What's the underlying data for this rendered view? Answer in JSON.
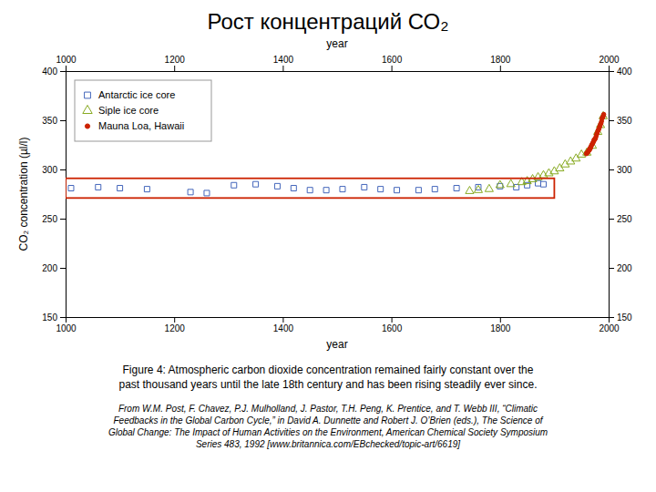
{
  "chart_data": {
    "type": "scatter",
    "title": "Рост концентраций СО₂",
    "x_label": "year",
    "y_label": "CO₂ concentration (µl/l)",
    "xlim": [
      1000,
      2000
    ],
    "ylim": [
      150,
      400
    ],
    "xticks": [
      1000,
      1200,
      1400,
      1600,
      1800,
      2000
    ],
    "yticks": [
      150,
      200,
      250,
      300,
      350,
      400
    ],
    "grid": false,
    "legend": "upper left",
    "series": [
      {
        "name": "Antarctic ice core",
        "color": "#4466bb",
        "marker": "square",
        "x": [
          1010,
          1060,
          1100,
          1150,
          1230,
          1260,
          1310,
          1350,
          1390,
          1420,
          1450,
          1480,
          1510,
          1550,
          1580,
          1610,
          1650,
          1680,
          1720,
          1760,
          1800,
          1830,
          1850,
          1870,
          1880
        ],
        "values": [
          281,
          282,
          281,
          280,
          277,
          276,
          284,
          285,
          283,
          281,
          279,
          279,
          280,
          282,
          280,
          279,
          279,
          280,
          281,
          282,
          283,
          282,
          284,
          286,
          285
        ]
      },
      {
        "name": "Siple ice core",
        "color": "#88aa22",
        "marker": "triangle",
        "x": [
          1744,
          1760,
          1780,
          1800,
          1820,
          1840,
          1850,
          1860,
          1870,
          1880,
          1890,
          1900,
          1910,
          1920,
          1930,
          1940,
          1950,
          1960,
          1970,
          1980,
          1985,
          1990
        ],
        "values": [
          278,
          279,
          280,
          284,
          285,
          287,
          288,
          290,
          292,
          294,
          296,
          298,
          301,
          305,
          308,
          311,
          315,
          317,
          324,
          338,
          345,
          354
        ]
      },
      {
        "name": "Mauna Loa, Hawaii",
        "color": "#cc2200",
        "marker": "point",
        "x": [
          1959,
          1960,
          1961,
          1962,
          1963,
          1964,
          1965,
          1966,
          1967,
          1968,
          1969,
          1970,
          1971,
          1972,
          1973,
          1974,
          1975,
          1976,
          1977,
          1978,
          1979,
          1980,
          1981,
          1982,
          1983,
          1984,
          1985,
          1986,
          1987,
          1988,
          1989,
          1990,
          1991
        ],
        "values": [
          316,
          317,
          317,
          318,
          319,
          320,
          320,
          322,
          322,
          324,
          325,
          326,
          327,
          328,
          330,
          330,
          331,
          332,
          334,
          336,
          337,
          339,
          340,
          341,
          343,
          344,
          346,
          347,
          349,
          352,
          353,
          354,
          356
        ]
      }
    ],
    "rectangle": {
      "x": 1000,
      "y": 271,
      "width": 900,
      "height": 20,
      "color": "#cc2200"
    },
    "caption": [
      "Figure 4: Atmospheric carbon dioxide concentration remained fairly constant over the",
      "past thousand years until the late 18th century and has been rising steadily ever since."
    ],
    "citation": [
      "From W.M. Post, F. Chavez, P.J. Mulholland, J. Pastor, T.H. Peng, K. Prentice, and T. Webb III, “Climatic",
      "Feedbacks in the Global Carbon Cycle,” in David A. Dunnette and Robert J. O’Brien (eds.), The Science of",
      "Global Change: The Impact of Human Activities on the Environment, American Chemical Society Symposium",
      "Series 483, 1992 [www.britannica.com/EBchecked/topic-art/6619]"
    ]
  }
}
